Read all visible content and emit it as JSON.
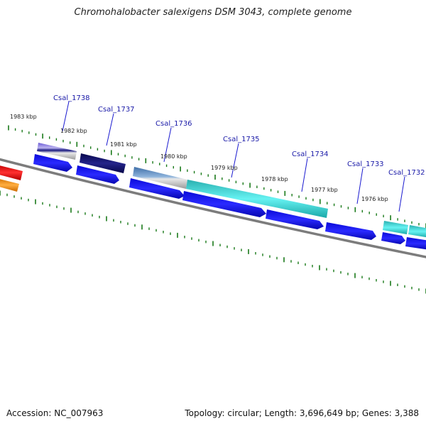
{
  "title": "Chromohalobacter salexigens DSM 3043, complete genome",
  "accession": "Accession: NC_007963",
  "summary": "Topology: circular; Length: 3,696,649 bp; Genes: 3,388",
  "gene_labels": [
    "Csal_1738",
    "Csal_1737",
    "Csal_1736",
    "Csal_1735",
    "Csal_1734",
    "Csal_1733",
    "Csal_1732"
  ],
  "kbp_labels": [
    "1983 kbp",
    "1982 kbp",
    "1981 kbp",
    "1980 kbp",
    "1979 kbp",
    "1978 kbp",
    "1977 kbp",
    "1976 kbp"
  ],
  "colors": {
    "gene_label": "#1a1aa8",
    "cds_arrow": "#0a0ae6",
    "tick": "#1a7a1a",
    "backbone": "#808080",
    "teal": "#29c6c6",
    "navy": "#10106e",
    "steel": "#5a86b8",
    "red": "#e61010",
    "orange": "#f08a10"
  }
}
